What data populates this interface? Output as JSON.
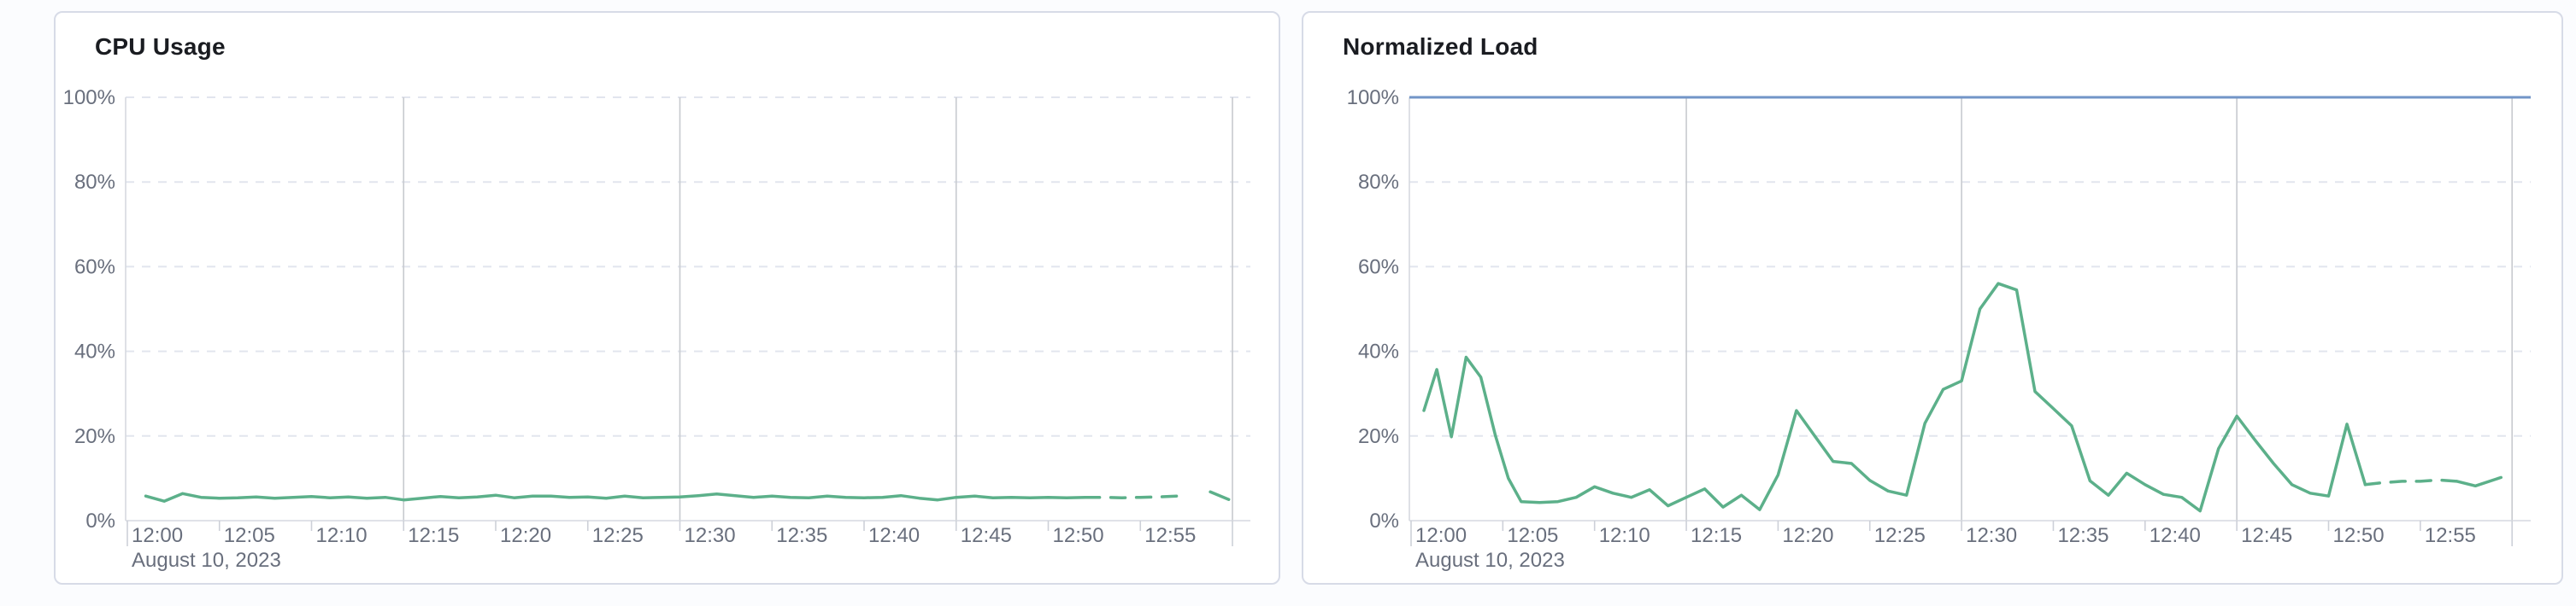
{
  "page": {
    "background": "#fbfcfe"
  },
  "colors": {
    "line_green": "#5cb08a",
    "ref_blue": "#7295c7",
    "grid_dashed": "#e2e5ee",
    "grid_quarter": "#c7cacf",
    "axis_line": "#d6d9e0",
    "tick_mark": "#cdd0d8",
    "label_text": "#696f7d",
    "title_text": "#1a1c21",
    "panel_border": "#d7dbe7"
  },
  "chart_data": [
    {
      "type": "line",
      "title": "CPU Usage",
      "date_label": "August 10, 2023",
      "xlabel": "",
      "ylabel": "",
      "ylim": [
        0,
        100
      ],
      "y_max": 100,
      "grid": "dashed-horizontal, quarter-hour vertical",
      "legend_position": "none",
      "y_axis_labels": [
        "100%",
        "80%",
        "60%",
        "40%",
        "20%",
        "0%"
      ],
      "x_axis_labels": [
        "12:00",
        "12:05",
        "12:10",
        "12:15",
        "12:20",
        "12:25",
        "12:30",
        "12:35",
        "12:40",
        "12:45",
        "12:50",
        "12:55"
      ],
      "x_unit": "minutes after 12:00",
      "series": [
        {
          "name": "cpu-usage",
          "points": [
            [
              1,
              5.8
            ],
            [
              2,
              4.6
            ],
            [
              3,
              6.4
            ],
            [
              4,
              5.5
            ],
            [
              5,
              5.3
            ],
            [
              6,
              5.4
            ],
            [
              7,
              5.6
            ],
            [
              8,
              5.3
            ],
            [
              9,
              5.5
            ],
            [
              10,
              5.7
            ],
            [
              11,
              5.4
            ],
            [
              12,
              5.6
            ],
            [
              13,
              5.3
            ],
            [
              14,
              5.5
            ],
            [
              15,
              4.9
            ],
            [
              16,
              5.3
            ],
            [
              17,
              5.7
            ],
            [
              18,
              5.4
            ],
            [
              19,
              5.6
            ],
            [
              20,
              6.0
            ],
            [
              21,
              5.4
            ],
            [
              22,
              5.8
            ],
            [
              23,
              5.8
            ],
            [
              24,
              5.5
            ],
            [
              25,
              5.6
            ],
            [
              26,
              5.3
            ],
            [
              27,
              5.8
            ],
            [
              28,
              5.4
            ],
            [
              29,
              5.5
            ],
            [
              30,
              5.6
            ],
            [
              31,
              5.9
            ],
            [
              32,
              6.3
            ],
            [
              33,
              5.9
            ],
            [
              34,
              5.5
            ],
            [
              35,
              5.8
            ],
            [
              36,
              5.5
            ],
            [
              37,
              5.4
            ],
            [
              38,
              5.8
            ],
            [
              39,
              5.5
            ],
            [
              40,
              5.4
            ],
            [
              41,
              5.5
            ],
            [
              42,
              5.9
            ],
            [
              43,
              5.3
            ],
            [
              44,
              4.9
            ],
            [
              45,
              5.5
            ],
            [
              46,
              5.8
            ],
            [
              47,
              5.4
            ],
            [
              48,
              5.5
            ],
            [
              49,
              5.4
            ],
            [
              50,
              5.5
            ],
            [
              51,
              5.4
            ],
            [
              52,
              5.5
            ],
            [
              53,
              5.5
            ],
            [
              54,
              5.4
            ],
            [
              55,
              5.5
            ],
            [
              56,
              5.6
            ],
            [
              57,
              5.8
            ],
            [
              58.8,
              6.8
            ],
            [
              59.8,
              5.0
            ]
          ],
          "segments": [
            {
              "from": 0,
              "to": 52,
              "style": "solid"
            },
            {
              "from": 52,
              "to": 57.2,
              "style": "dashed"
            },
            {
              "from": 57.2,
              "to": 59.8,
              "style": "solid"
            }
          ]
        }
      ],
      "ref_line": null
    },
    {
      "type": "line",
      "title": "Normalized Load",
      "date_label": "August 10, 2023",
      "xlabel": "",
      "ylabel": "",
      "ylim": [
        0,
        100
      ],
      "y_max": 100,
      "grid": "dashed-horizontal, quarter-hour vertical",
      "legend_position": "none",
      "y_axis_labels": [
        "100%",
        "80%",
        "60%",
        "40%",
        "20%",
        "0%"
      ],
      "x_axis_labels": [
        "12:00",
        "12:05",
        "12:10",
        "12:15",
        "12:20",
        "12:25",
        "12:30",
        "12:35",
        "12:40",
        "12:45",
        "12:50",
        "12:55"
      ],
      "x_unit": "minutes after 12:00",
      "series": [
        {
          "name": "normalized-load",
          "points": [
            [
              0.7,
              26
            ],
            [
              1.4,
              35.7
            ],
            [
              2.2,
              19.8
            ],
            [
              3,
              38.6
            ],
            [
              3.8,
              33.9
            ],
            [
              4.6,
              20
            ],
            [
              5.3,
              10
            ],
            [
              6,
              4.5
            ],
            [
              7,
              4.3
            ],
            [
              8,
              4.5
            ],
            [
              9,
              5.5
            ],
            [
              10,
              8
            ],
            [
              11,
              6.5
            ],
            [
              12,
              5.5
            ],
            [
              13,
              7.3
            ],
            [
              14,
              3.5
            ],
            [
              15,
              5.5
            ],
            [
              16,
              7.5
            ],
            [
              17,
              3.2
            ],
            [
              18,
              6
            ],
            [
              19,
              2.6
            ],
            [
              20,
              10.8
            ],
            [
              21,
              26
            ],
            [
              22,
              20
            ],
            [
              23,
              14
            ],
            [
              24,
              13.5
            ],
            [
              25,
              9.5
            ],
            [
              26,
              7
            ],
            [
              27,
              6
            ],
            [
              28,
              23
            ],
            [
              29,
              31
            ],
            [
              30,
              33
            ],
            [
              31,
              50
            ],
            [
              32,
              56
            ],
            [
              33,
              54.5
            ],
            [
              34,
              30.5
            ],
            [
              35,
              26.5
            ],
            [
              36,
              22.4
            ],
            [
              37,
              9.4
            ],
            [
              38,
              6
            ],
            [
              39,
              11.2
            ],
            [
              40,
              8.5
            ],
            [
              41,
              6.2
            ],
            [
              42,
              5.5
            ],
            [
              43,
              2.3
            ],
            [
              44,
              17
            ],
            [
              45,
              24.7
            ],
            [
              46,
              19
            ],
            [
              47,
              13.5
            ],
            [
              48,
              8.5
            ],
            [
              49,
              6.5
            ],
            [
              50,
              5.8
            ],
            [
              51,
              22.8
            ],
            [
              52,
              8.5
            ],
            [
              53,
              9
            ],
            [
              54,
              9.3
            ],
            [
              55,
              9.3
            ],
            [
              56,
              9.6
            ],
            [
              57,
              9.3
            ],
            [
              58,
              8.2
            ],
            [
              59.4,
              10.2
            ]
          ],
          "segments": [
            {
              "from": 0,
              "to": 52,
              "style": "solid"
            },
            {
              "from": 52,
              "to": 57,
              "style": "dashed"
            },
            {
              "from": 57,
              "to": 59.4,
              "style": "solid"
            }
          ]
        }
      ],
      "ref_line": {
        "value": 100
      }
    }
  ]
}
